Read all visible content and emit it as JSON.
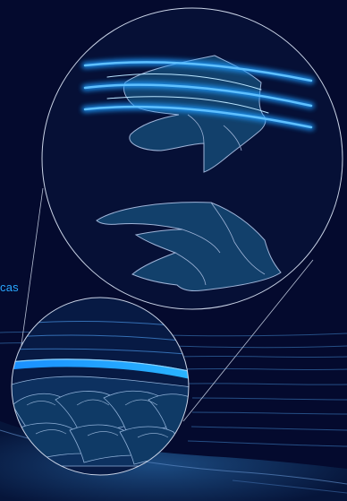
{
  "label_text": "cas",
  "colors": {
    "background": "#040a2e",
    "label": "#2aa8ff",
    "circle_outline": "#c9d3e6",
    "flake_fill": "#12406b",
    "flake_stroke": "#9fb4d8",
    "band_glow": "#1f9bff",
    "band_core": "#8fd4ff",
    "floor_fill": "#0b2a52"
  },
  "icons": {
    "large_circle": "magnified-view",
    "small_circle": "detail-view"
  }
}
